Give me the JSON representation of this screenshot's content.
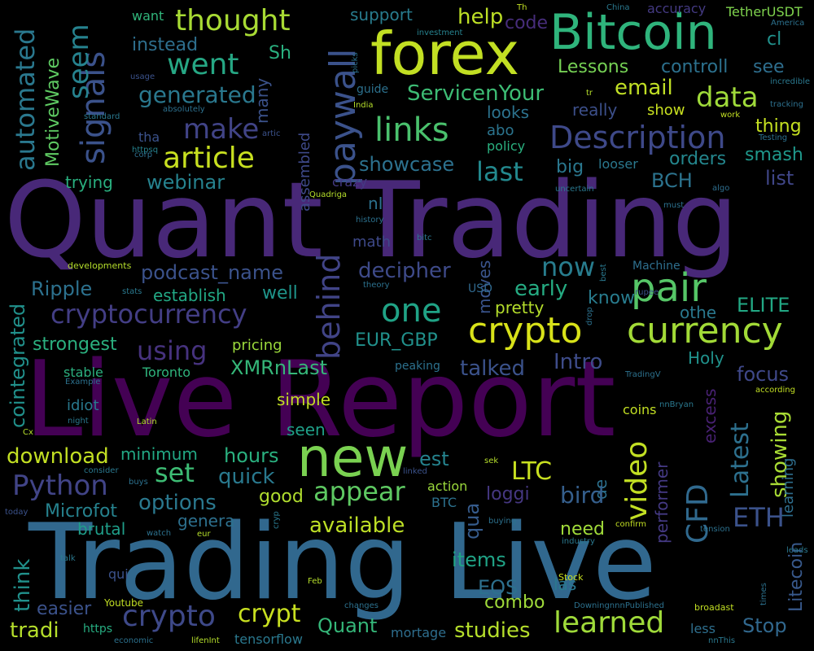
{
  "words": [
    {
      "text": "Quant Trading",
      "color": "#482878"
    },
    {
      "text": "Live Report",
      "color": "#440154"
    },
    {
      "text": "Trading Live",
      "color": "#31688e"
    },
    {
      "text": "forex",
      "color": "#c2df23"
    },
    {
      "text": "Bitcoin",
      "color": "#2fb47c"
    },
    {
      "text": "new",
      "color": "#7ad151"
    },
    {
      "text": "crypto",
      "color": "#d8e219"
    },
    {
      "text": "currency",
      "color": "#a2da37"
    },
    {
      "text": "pair",
      "color": "#56c667"
    },
    {
      "text": "paywall",
      "color": "#3b528b"
    },
    {
      "text": "behind",
      "color": "#414487"
    },
    {
      "text": "links",
      "color": "#4ac16d"
    },
    {
      "text": "signals",
      "color": "#3b528b"
    },
    {
      "text": "seem",
      "color": "#26828e"
    },
    {
      "text": "automated",
      "color": "#2a788e"
    },
    {
      "text": "MotiveWave",
      "color": "#5ec962"
    },
    {
      "text": "thought",
      "color": "#a8db34"
    },
    {
      "text": "went",
      "color": "#26a784"
    },
    {
      "text": "generated",
      "color": "#2a788e"
    },
    {
      "text": "make",
      "color": "#414487"
    },
    {
      "text": "article",
      "color": "#c8e020"
    },
    {
      "text": "Description",
      "color": "#3e4989"
    },
    {
      "text": "data",
      "color": "#9fda3a"
    },
    {
      "text": "email",
      "color": "#c0df25"
    },
    {
      "text": "ServicenYour",
      "color": "#3dbc74"
    },
    {
      "text": "Lessons",
      "color": "#75d054"
    },
    {
      "text": "controll",
      "color": "#2c718e"
    },
    {
      "text": "see",
      "color": "#2e6e8e"
    },
    {
      "text": "help",
      "color": "#bddf26"
    },
    {
      "text": "code",
      "color": "#472d7b"
    },
    {
      "text": "support",
      "color": "#287c8e"
    },
    {
      "text": "want",
      "color": "#31b57b"
    },
    {
      "text": "instead",
      "color": "#2e6f8e"
    },
    {
      "text": "Sh",
      "color": "#2ab07f"
    },
    {
      "text": "accuracy",
      "color": "#443a83"
    },
    {
      "text": "TetherUSDT",
      "color": "#7fd34e"
    },
    {
      "text": "cl",
      "color": "#21918c"
    },
    {
      "text": "thing",
      "color": "#c5e021"
    },
    {
      "text": "smash",
      "color": "#1f988b"
    },
    {
      "text": "list",
      "color": "#404688"
    },
    {
      "text": "orders",
      "color": "#24878e"
    },
    {
      "text": "show",
      "color": "#c8e020"
    },
    {
      "text": "really",
      "color": "#3c4f8a"
    },
    {
      "text": "looks",
      "color": "#2c738e"
    },
    {
      "text": "abo",
      "color": "#2b748e"
    },
    {
      "text": "policy",
      "color": "#2ab07f"
    },
    {
      "text": "last",
      "color": "#23898e"
    },
    {
      "text": "big",
      "color": "#2a778e"
    },
    {
      "text": "BCH",
      "color": "#2c738e"
    },
    {
      "text": "looser",
      "color": "#2a788e"
    },
    {
      "text": "showcase",
      "color": "#2c718e"
    },
    {
      "text": "webinar",
      "color": "#26828e"
    },
    {
      "text": "trying",
      "color": "#29af7f"
    },
    {
      "text": "tha",
      "color": "#3b528b"
    },
    {
      "text": "many",
      "color": "#3b528b"
    },
    {
      "text": "assembled",
      "color": "#3e4989"
    },
    {
      "text": "podcast_name",
      "color": "#3b528b"
    },
    {
      "text": "establish",
      "color": "#22a884"
    },
    {
      "text": "Ripple",
      "color": "#2c718e"
    },
    {
      "text": "cryptocurrency",
      "color": "#433e85"
    },
    {
      "text": "using",
      "color": "#46327e"
    },
    {
      "text": "strongest",
      "color": "#2bb07f"
    },
    {
      "text": "pricing",
      "color": "#9bd93c"
    },
    {
      "text": "cointegrated",
      "color": "#21918c"
    },
    {
      "text": "one",
      "color": "#20a386"
    },
    {
      "text": "now",
      "color": "#287d8e"
    },
    {
      "text": "decipher",
      "color": "#3e4a89"
    },
    {
      "text": "well",
      "color": "#1f958b"
    },
    {
      "text": "EUR_GBP",
      "color": "#21918c"
    },
    {
      "text": "moves",
      "color": "#3a548c"
    },
    {
      "text": "early",
      "color": "#25ab82"
    },
    {
      "text": "pretty",
      "color": "#b5de2b"
    },
    {
      "text": "know",
      "color": "#287c8e"
    },
    {
      "text": "othe",
      "color": "#2a788e"
    },
    {
      "text": "ELITE",
      "color": "#22a884"
    },
    {
      "text": "Machine",
      "color": "#2e6f8e"
    },
    {
      "text": "USD",
      "color": "#30698e"
    },
    {
      "text": "Holy",
      "color": "#20928c"
    },
    {
      "text": "Intro",
      "color": "#3e4c8a"
    },
    {
      "text": "talked",
      "color": "#3b528b"
    },
    {
      "text": "XMRnLast",
      "color": "#35b779"
    },
    {
      "text": "Toronto",
      "color": "#2fb47c"
    },
    {
      "text": "focus",
      "color": "#3f4889"
    },
    {
      "text": "Latest",
      "color": "#2d708e"
    },
    {
      "text": "Litecoin",
      "color": "#38598c"
    },
    {
      "text": "simple",
      "color": "#c2df23"
    },
    {
      "text": "crazy",
      "color": "#443983"
    },
    {
      "text": "seen",
      "color": "#1fa088"
    },
    {
      "text": "idiot",
      "color": "#29798e"
    },
    {
      "text": "stable",
      "color": "#2bb07f"
    },
    {
      "text": "Python",
      "color": "#414487"
    },
    {
      "text": "download",
      "color": "#c2df23"
    },
    {
      "text": "minimum",
      "color": "#22a884"
    },
    {
      "text": "hours",
      "color": "#2ab07f"
    },
    {
      "text": "quick",
      "color": "#29798e"
    },
    {
      "text": "set",
      "color": "#3dbc74"
    },
    {
      "text": "est",
      "color": "#25838e"
    },
    {
      "text": "video",
      "color": "#c2df23"
    },
    {
      "text": "CFD",
      "color": "#30698e"
    },
    {
      "text": "LTC",
      "color": "#c8e020"
    },
    {
      "text": "ETH",
      "color": "#3b528b"
    },
    {
      "text": "showing",
      "color": "#a8db34"
    },
    {
      "text": "de",
      "color": "#2c718e"
    },
    {
      "text": "excess",
      "color": "#482173"
    },
    {
      "text": "learning",
      "color": "#2e6e8e"
    },
    {
      "text": "performer",
      "color": "#443983"
    },
    {
      "text": "bird",
      "color": "#355f8d"
    },
    {
      "text": "loggi",
      "color": "#453781"
    },
    {
      "text": "appear",
      "color": "#5ec962"
    },
    {
      "text": "available",
      "color": "#bddf26"
    },
    {
      "text": "good",
      "color": "#b0dd2f"
    },
    {
      "text": "options",
      "color": "#2a788e"
    },
    {
      "text": "genera",
      "color": "#2d708e"
    },
    {
      "text": "Microfot",
      "color": "#26828e"
    },
    {
      "text": "brutal",
      "color": "#1f9e89"
    },
    {
      "text": "think",
      "color": "#21918c"
    },
    {
      "text": "qua",
      "color": "#365c8d"
    },
    {
      "text": "items",
      "color": "#20a386"
    },
    {
      "text": "need",
      "color": "#a0da39"
    },
    {
      "text": "combo",
      "color": "#9fda3a"
    },
    {
      "text": "learned",
      "color": "#9fda3a"
    },
    {
      "text": "las",
      "color": "#2a788e"
    },
    {
      "text": "EOS",
      "color": "#2d708e"
    },
    {
      "text": "studies",
      "color": "#b5de2b"
    },
    {
      "text": "Quant",
      "color": "#35b779"
    },
    {
      "text": "crypt",
      "color": "#c8e020"
    },
    {
      "text": "crypto",
      "color": "#3e4989"
    },
    {
      "text": "tradi",
      "color": "#b5de2b"
    },
    {
      "text": "easier",
      "color": "#3b528b"
    },
    {
      "text": "Stop",
      "color": "#31688e"
    },
    {
      "text": "less",
      "color": "#2e6f8e"
    },
    {
      "text": "mortage",
      "color": "#2e6e8e"
    },
    {
      "text": "tensorflow",
      "color": "#2a788e"
    },
    {
      "text": "qui",
      "color": "#3b528b"
    },
    {
      "text": "https",
      "color": "#27ad81"
    },
    {
      "text": "Youtube",
      "color": "#c2df23"
    },
    {
      "text": "Stock",
      "color": "#c8e020"
    },
    {
      "text": "action",
      "color": "#9bd93c"
    },
    {
      "text": "BTC",
      "color": "#2c718e"
    },
    {
      "text": "peaking",
      "color": "#2c718e"
    },
    {
      "text": "Th",
      "color": "#c2df23"
    },
    {
      "text": "China",
      "color": "#2a788e"
    },
    {
      "text": "America",
      "color": "#2c718e"
    },
    {
      "text": "investment",
      "color": "#26828e"
    },
    {
      "text": "picks",
      "color": "#2c718e"
    },
    {
      "text": "guide",
      "color": "#2c718e"
    },
    {
      "text": "India",
      "color": "#b5de2b"
    },
    {
      "text": "corp",
      "color": "#2e6e8e"
    },
    {
      "text": "artic",
      "color": "#3b528b"
    },
    {
      "text": "httpsq",
      "color": "#26828e"
    },
    {
      "text": "standard",
      "color": "#2a788e"
    },
    {
      "text": "absolutely",
      "color": "#2d708e"
    },
    {
      "text": "usage",
      "color": "#3b528b"
    },
    {
      "text": "tr",
      "color": "#b5de2b"
    },
    {
      "text": "incredible",
      "color": "#2a788e"
    },
    {
      "text": "tracking",
      "color": "#2d708e"
    },
    {
      "text": "work",
      "color": "#c2df23"
    },
    {
      "text": "Testing",
      "color": "#2c718e"
    },
    {
      "text": "algo",
      "color": "#2e6e8e"
    },
    {
      "text": "must",
      "color": "#2c718e"
    },
    {
      "text": "uncertain",
      "color": "#2a788e"
    },
    {
      "text": "Quadriga",
      "color": "#b5de2b"
    },
    {
      "text": "history",
      "color": "#2c718e"
    },
    {
      "text": "bitc",
      "color": "#2a788e"
    },
    {
      "text": "theory",
      "color": "#2c718e"
    },
    {
      "text": "rupee",
      "color": "#3b528b"
    },
    {
      "text": "best",
      "color": "#2a788e"
    },
    {
      "text": "math",
      "color": "#3e4989"
    },
    {
      "text": "nI",
      "color": "#2c718e"
    },
    {
      "text": "developments",
      "color": "#b5de2b"
    },
    {
      "text": "stats",
      "color": "#2a788e"
    },
    {
      "text": "Example",
      "color": "#2c718e"
    },
    {
      "text": "night",
      "color": "#2a788e"
    },
    {
      "text": "Latin",
      "color": "#b5de2b"
    },
    {
      "text": "Cx",
      "color": "#b5de2b"
    },
    {
      "text": "consider",
      "color": "#2a788e"
    },
    {
      "text": "buys",
      "color": "#2c718e"
    },
    {
      "text": "today",
      "color": "#3b528b"
    },
    {
      "text": "talk",
      "color": "#2a788e"
    },
    {
      "text": "watch",
      "color": "#2c718e"
    },
    {
      "text": "eur",
      "color": "#b5de2b"
    },
    {
      "text": "cryp",
      "color": "#2a788e"
    },
    {
      "text": "Feb",
      "color": "#b5de2b"
    },
    {
      "text": "economic",
      "color": "#2c718e"
    },
    {
      "text": "lifenInt",
      "color": "#b5de2b"
    },
    {
      "text": "changes",
      "color": "#2c718e"
    },
    {
      "text": "linked",
      "color": "#3b528b"
    },
    {
      "text": "sek",
      "color": "#b5de2b"
    },
    {
      "text": "buying",
      "color": "#2c718e"
    },
    {
      "text": "confirm",
      "color": "#c2df23"
    },
    {
      "text": "industry",
      "color": "#2a788e"
    },
    {
      "text": "drop",
      "color": "#2c718e"
    },
    {
      "text": "according",
      "color": "#c2df23"
    },
    {
      "text": "TradingV",
      "color": "#2c718e"
    },
    {
      "text": "nnBryan",
      "color": "#2a788e"
    },
    {
      "text": "coins",
      "color": "#c2df23"
    },
    {
      "text": "tension",
      "color": "#2c718e"
    },
    {
      "text": "leads",
      "color": "#2a788e"
    },
    {
      "text": "times",
      "color": "#2c718e"
    },
    {
      "text": "broadast",
      "color": "#c2df23"
    },
    {
      "text": "DowningnnnPublished",
      "color": "#2c718e"
    },
    {
      "text": "nnThis",
      "color": "#2a788e"
    }
  ]
}
